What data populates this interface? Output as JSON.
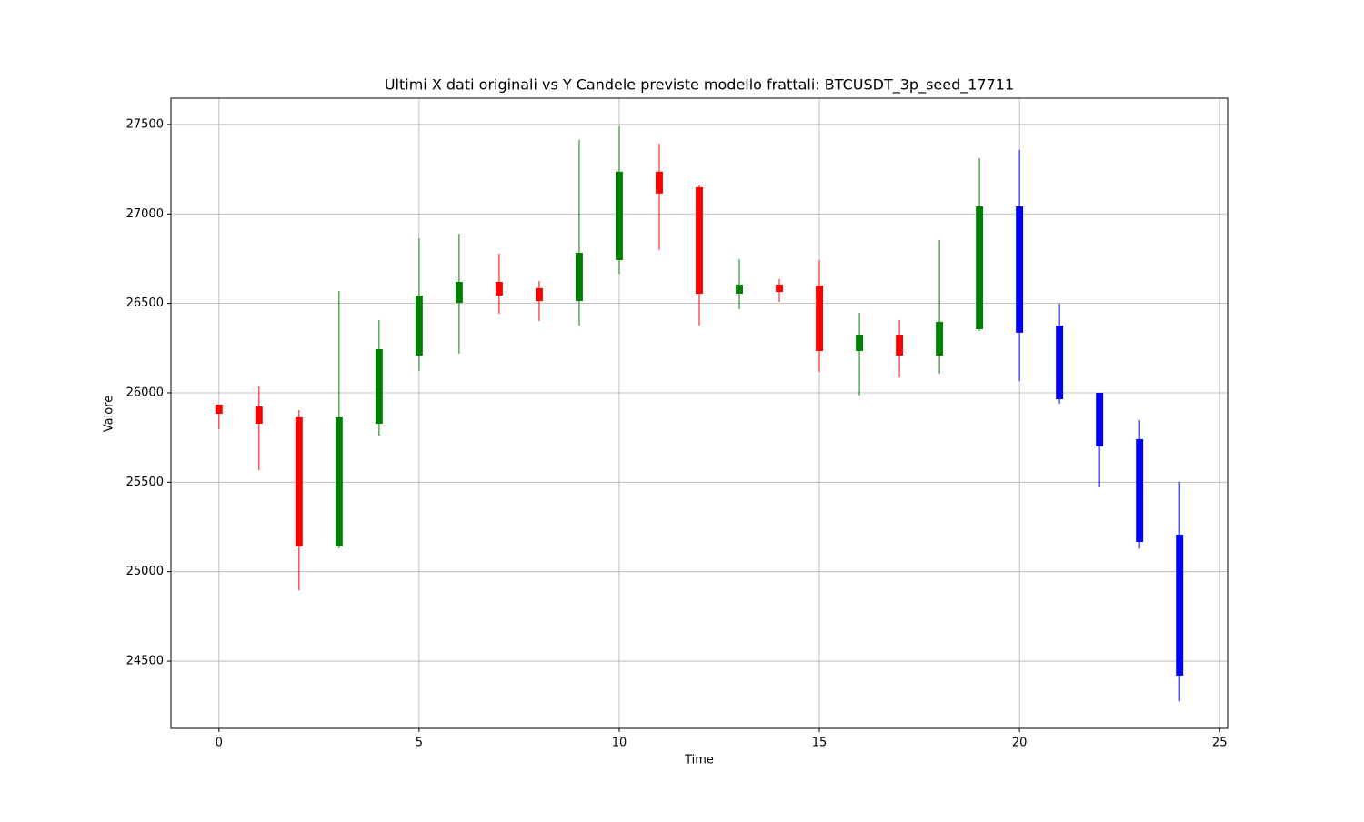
{
  "chart_data": {
    "type": "candlestick",
    "title": "Ultimi X dati originali vs Y Candele previste modello frattali: BTCUSDT_3p_seed_17711",
    "x_label": "Time",
    "y_label": "Valore",
    "xlim": [
      -1.2,
      25.2
    ],
    "xticks": [
      0,
      5,
      10,
      15,
      20,
      25
    ],
    "ylim": [
      24124,
      27647
    ],
    "yticks": [
      24500,
      25000,
      25500,
      26000,
      26500,
      27000,
      27500
    ],
    "grid": true,
    "series": [
      {
        "up_color": "green",
        "down_color": "red",
        "x": [
          0,
          1,
          2,
          3,
          4,
          5,
          6,
          7,
          8,
          9,
          10,
          11,
          12,
          13,
          14,
          15,
          16,
          17,
          18,
          19
        ],
        "open": [
          25934,
          25924,
          25863,
          25141,
          25827,
          26208,
          26503,
          26620,
          26585,
          26513,
          26742,
          27236,
          27149,
          26554,
          26605,
          26600,
          26234,
          26325,
          26208,
          26356
        ],
        "high": [
          25934,
          26036,
          25903,
          26569,
          26407,
          26864,
          26890,
          26778,
          26625,
          27414,
          27490,
          27393,
          27159,
          26747,
          26636,
          26742,
          26447,
          26407,
          26854,
          27312
        ],
        "low": [
          25797,
          25568,
          24896,
          25130,
          25761,
          26122,
          26219,
          26442,
          26402,
          26376,
          26666,
          26798,
          26376,
          26468,
          26508,
          26117,
          25985,
          26086,
          26107,
          26346
        ],
        "close": [
          25883,
          25827,
          25141,
          25863,
          26244,
          26544,
          26620,
          26544,
          26513,
          26783,
          27236,
          27114,
          26554,
          26605,
          26564,
          26234,
          26325,
          26208,
          26397,
          27042
        ]
      },
      {
        "color": "blue",
        "x": [
          20,
          21,
          22,
          23,
          24
        ],
        "open": [
          27042,
          26376,
          26000,
          25741,
          25207
        ],
        "high": [
          27358,
          26498,
          26000,
          25847,
          25502
        ],
        "low": [
          26066,
          25939,
          25471,
          25130,
          24276
        ],
        "close": [
          26336,
          25964,
          25700,
          25166,
          24419
        ]
      }
    ]
  }
}
